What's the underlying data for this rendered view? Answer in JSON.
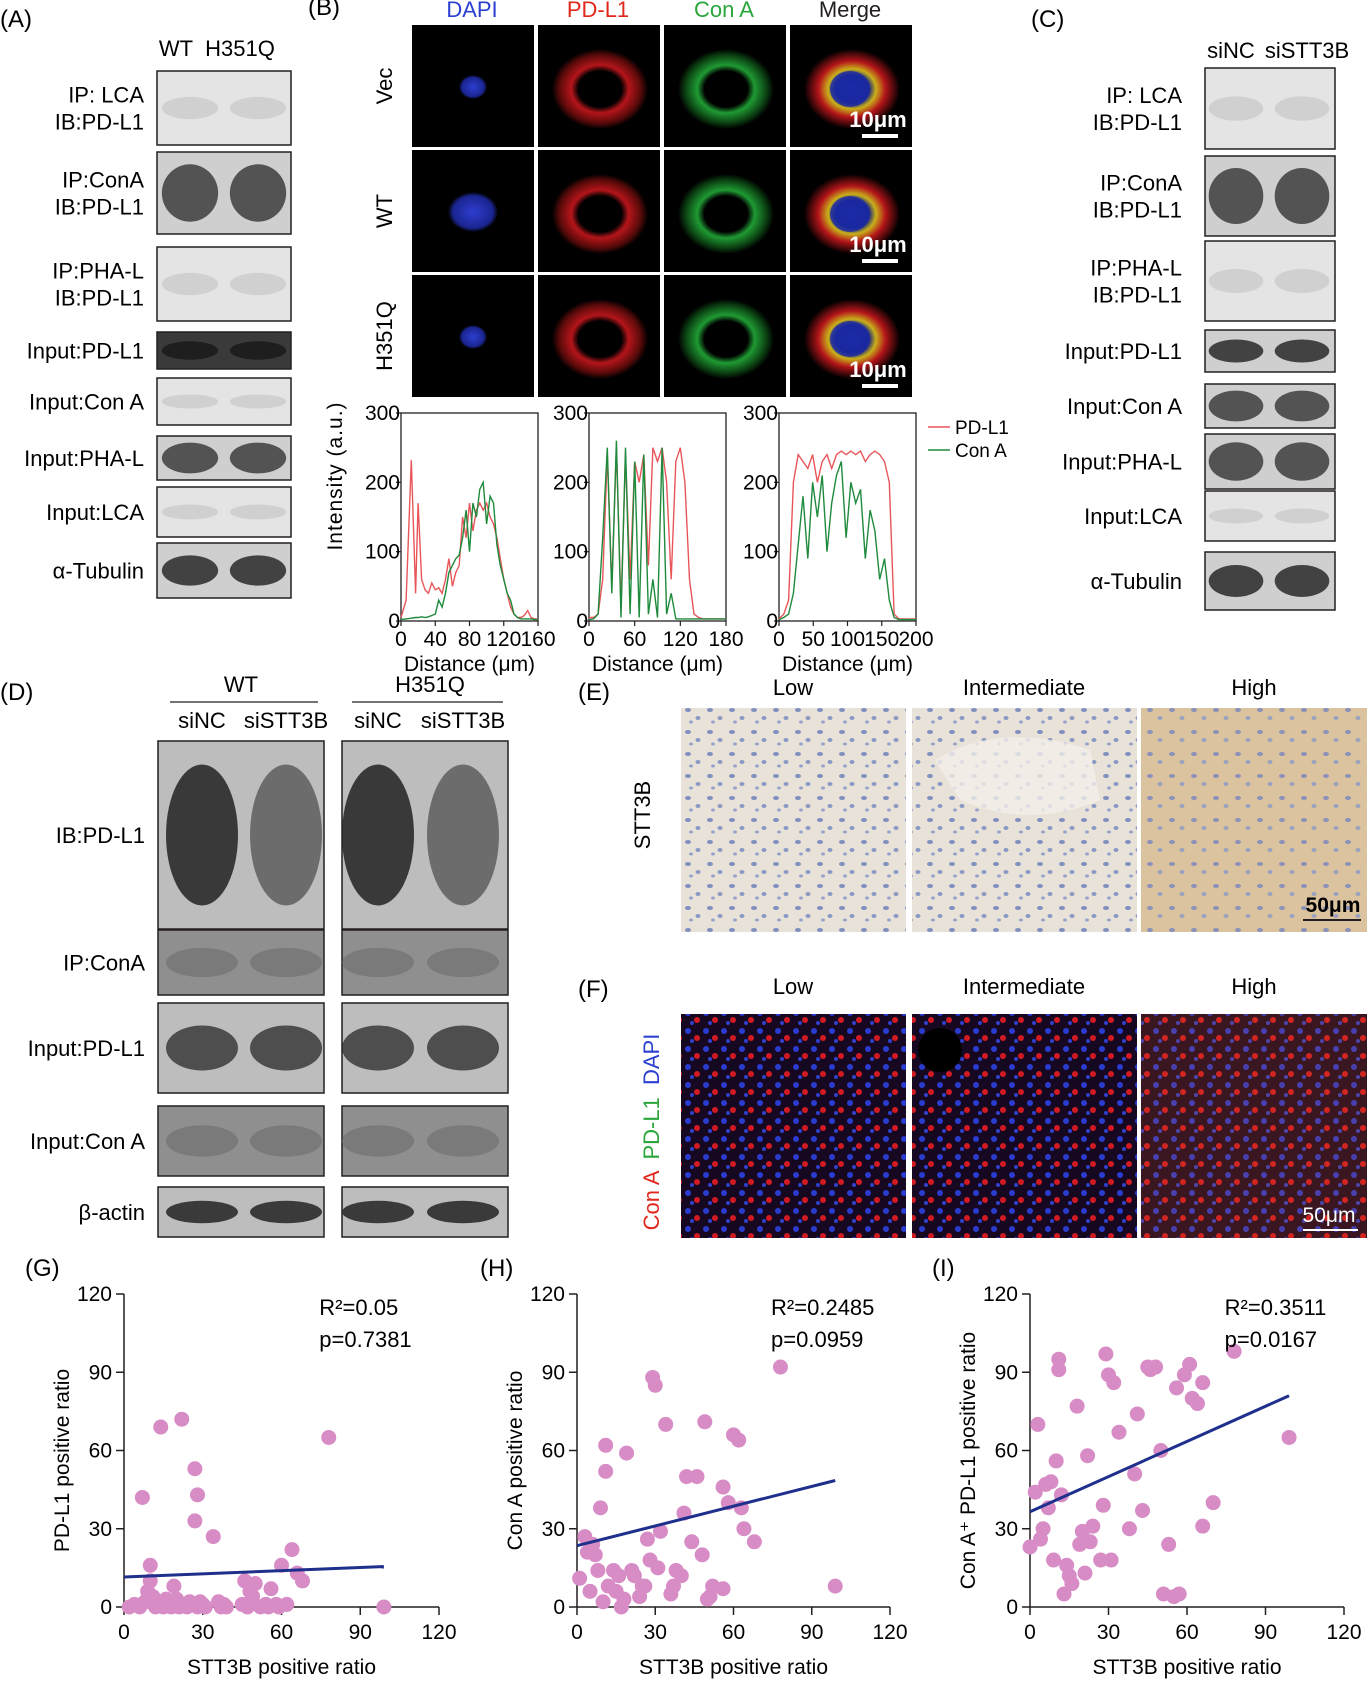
{
  "panels": {
    "A": {
      "letter": "(A)",
      "columns": [
        "WT",
        "H351Q"
      ],
      "rows": [
        "IP: LCA\nIB:PD-L1",
        "IP:ConA\nIB:PD-L1",
        "IP:PHA-L\nIB:PD-L1",
        "Input:PD-L1",
        "Input:Con A",
        "Input:PHA-L",
        "Input:LCA",
        "α-Tubulin"
      ]
    },
    "B": {
      "letter": "(B)",
      "channels": [
        "DAPI",
        "PD-L1",
        "Con A",
        "Merge"
      ],
      "channel_colors": [
        "#2b3fd1",
        "#e1261c",
        "#2aa63b",
        "#231f20"
      ],
      "rows": [
        "Vec",
        "WT",
        "H351Q"
      ],
      "scale_bar": "10μm",
      "ylabel": "Intensity (a.u.)",
      "xlabel": "Distance (μm)",
      "legend": [
        "PD-L1",
        "Con A"
      ]
    },
    "C": {
      "letter": "(C)",
      "columns": [
        "siNC",
        "siSTT3B"
      ],
      "rows": [
        "IP: LCA\nIB:PD-L1",
        "IP:ConA\nIB:PD-L1",
        "IP:PHA-L\nIB:PD-L1",
        "Input:PD-L1",
        "Input:Con A",
        "Input:PHA-L",
        "Input:LCA",
        "α-Tubulin"
      ]
    },
    "D": {
      "letter": "(D)",
      "groups": [
        "WT",
        "H351Q"
      ],
      "columns": [
        "siNC",
        "siSTT3B",
        "siNC",
        "siSTT3B"
      ],
      "rows": [
        "IB:PD-L1",
        "IP:ConA",
        "Input:PD-L1",
        "Input:Con A",
        "β-actin"
      ]
    },
    "E": {
      "letter": "(E)",
      "columns": [
        "Low",
        "Intermediate",
        "High"
      ],
      "row_label": "STT3B",
      "scale_bar": "50μm"
    },
    "F": {
      "letter": "(F)",
      "columns": [
        "Low",
        "Intermediate",
        "High"
      ],
      "row_label_parts": [
        "Con A",
        "PD-L1",
        "DAPI"
      ],
      "row_label_colors": [
        "#e1261c",
        "#2aa63b",
        "#2b3fd1"
      ],
      "scale_bar": "50μm"
    },
    "G": {
      "letter": "(G)",
      "r2": "R²=0.05",
      "p": "p=0.7381"
    },
    "H": {
      "letter": "(H)",
      "r2": "R²=0.2485",
      "p": "p=0.0959"
    },
    "I": {
      "letter": "(I)",
      "r2": "R²=0.3511",
      "p": "p=0.0167"
    }
  },
  "chart_data": [
    {
      "type": "line",
      "panel": "B-Vec",
      "xlabel": "Distance (μm)",
      "ylabel": "Intensity (a.u.)",
      "xticks": [
        0,
        40,
        80,
        120,
        160
      ],
      "yticks": [
        0,
        100,
        200,
        300
      ],
      "xlim": [
        0,
        160
      ],
      "ylim": [
        0,
        300
      ],
      "x": [
        0,
        6,
        12,
        17,
        20,
        24,
        28,
        32,
        36,
        40,
        44,
        48,
        52,
        56,
        60,
        64,
        68,
        72,
        76,
        80,
        84,
        88,
        92,
        96,
        100,
        104,
        108,
        112,
        116,
        120,
        124,
        128,
        132,
        136,
        140,
        144,
        148,
        152,
        156,
        160
      ],
      "series": [
        {
          "name": "PD-L1",
          "color": "#e8565a",
          "values": [
            5,
            30,
            232,
            40,
            170,
            60,
            45,
            40,
            55,
            45,
            48,
            40,
            60,
            90,
            50,
            70,
            80,
            150,
            120,
            170,
            130,
            160,
            170,
            160,
            170,
            150,
            140,
            120,
            90,
            60,
            40,
            20,
            10,
            5,
            5,
            8,
            15,
            5,
            3,
            3
          ]
        },
        {
          "name": "Con A",
          "color": "#1e8a3c",
          "values": [
            2,
            3,
            4,
            5,
            5,
            6,
            5,
            6,
            8,
            10,
            30,
            20,
            40,
            70,
            80,
            90,
            95,
            120,
            160,
            100,
            170,
            150,
            190,
            200,
            140,
            180,
            170,
            110,
            80,
            60,
            40,
            30,
            10,
            5,
            3,
            3,
            3,
            3,
            2,
            2
          ]
        }
      ]
    },
    {
      "type": "line",
      "panel": "B-WT",
      "xlabel": "Distance (μm)",
      "ylabel": "Intensity (a.u.)",
      "xticks": [
        0,
        60,
        120,
        180
      ],
      "yticks": [
        0,
        100,
        200,
        300
      ],
      "xlim": [
        0,
        180
      ],
      "ylim": [
        0,
        300
      ],
      "x": [
        0,
        6,
        12,
        18,
        24,
        30,
        36,
        42,
        48,
        54,
        60,
        66,
        72,
        78,
        84,
        90,
        96,
        102,
        108,
        114,
        120,
        126,
        132,
        138,
        144,
        150,
        156,
        162,
        168,
        174,
        180
      ],
      "series": [
        {
          "name": "PD-L1",
          "color": "#e8565a",
          "values": [
            5,
            5,
            10,
            60,
            240,
            50,
            250,
            20,
            240,
            60,
            230,
            200,
            240,
            80,
            250,
            230,
            250,
            200,
            60,
            230,
            250,
            200,
            60,
            10,
            5,
            3,
            3,
            3,
            3,
            3,
            3
          ]
        },
        {
          "name": "Con A",
          "color": "#1e8a3c",
          "values": [
            2,
            3,
            10,
            120,
            250,
            40,
            260,
            5,
            250,
            10,
            230,
            5,
            240,
            10,
            60,
            5,
            250,
            10,
            40,
            3,
            3,
            3,
            3,
            3,
            3,
            3,
            3,
            3,
            3,
            3,
            3
          ]
        }
      ]
    },
    {
      "type": "line",
      "panel": "B-H351Q",
      "xlabel": "Distance (μm)",
      "ylabel": "Intensity (a.u.)",
      "xticks": [
        0,
        50,
        100,
        150,
        200
      ],
      "yticks": [
        0,
        100,
        200,
        300
      ],
      "xlim": [
        0,
        200
      ],
      "ylim": [
        0,
        300
      ],
      "x": [
        0,
        7,
        14,
        21,
        28,
        35,
        42,
        49,
        56,
        63,
        70,
        77,
        84,
        91,
        98,
        105,
        112,
        119,
        126,
        133,
        140,
        147,
        154,
        161,
        168,
        175,
        182,
        189,
        196,
        200
      ],
      "series": [
        {
          "name": "PD-L1",
          "color": "#e8565a",
          "values": [
            3,
            10,
            30,
            200,
            240,
            230,
            220,
            240,
            200,
            230,
            240,
            220,
            240,
            245,
            240,
            245,
            240,
            245,
            230,
            240,
            245,
            240,
            230,
            200,
            10,
            3,
            3,
            3,
            3,
            3
          ]
        },
        {
          "name": "Con A",
          "color": "#1e8a3c",
          "values": [
            2,
            5,
            10,
            40,
            110,
            180,
            90,
            200,
            150,
            210,
            100,
            170,
            210,
            230,
            120,
            200,
            170,
            190,
            90,
            160,
            130,
            60,
            90,
            30,
            5,
            2,
            2,
            2,
            2,
            2
          ]
        }
      ]
    },
    {
      "type": "scatter",
      "panel": "G",
      "xlabel": "STT3B positive ratio",
      "ylabel": "PD-L1 positive ratio",
      "xlim": [
        0,
        120
      ],
      "ylim": [
        0,
        120
      ],
      "xticks": [
        0,
        30,
        60,
        90,
        120
      ],
      "yticks": [
        0,
        30,
        60,
        90,
        120
      ],
      "points": [
        [
          2,
          0
        ],
        [
          4,
          1
        ],
        [
          6,
          0
        ],
        [
          7,
          42
        ],
        [
          8,
          2
        ],
        [
          9,
          6
        ],
        [
          10,
          10
        ],
        [
          10,
          16
        ],
        [
          11,
          4
        ],
        [
          12,
          0
        ],
        [
          13,
          1
        ],
        [
          14,
          69
        ],
        [
          15,
          0
        ],
        [
          16,
          3
        ],
        [
          18,
          0
        ],
        [
          19,
          8
        ],
        [
          20,
          3
        ],
        [
          21,
          0
        ],
        [
          22,
          72
        ],
        [
          23,
          1
        ],
        [
          24,
          0
        ],
        [
          25,
          2
        ],
        [
          27,
          53
        ],
        [
          27,
          33
        ],
        [
          28,
          43
        ],
        [
          28,
          0
        ],
        [
          29,
          2
        ],
        [
          30,
          1
        ],
        [
          31,
          0
        ],
        [
          34,
          27
        ],
        [
          36,
          2
        ],
        [
          37,
          0
        ],
        [
          38,
          1
        ],
        [
          39,
          0
        ],
        [
          45,
          1
        ],
        [
          46,
          10
        ],
        [
          47,
          0
        ],
        [
          48,
          6
        ],
        [
          49,
          4
        ],
        [
          50,
          9
        ],
        [
          52,
          0
        ],
        [
          54,
          1
        ],
        [
          55,
          0
        ],
        [
          56,
          7
        ],
        [
          58,
          1
        ],
        [
          59,
          0
        ],
        [
          60,
          16
        ],
        [
          62,
          1
        ],
        [
          64,
          22
        ],
        [
          66,
          13
        ],
        [
          68,
          10
        ],
        [
          78,
          65
        ],
        [
          99,
          0
        ]
      ],
      "fit_line": [
        [
          0,
          11.5
        ],
        [
          99,
          15.5
        ]
      ],
      "r2": "R²=0.05",
      "p": "p=0.7381"
    },
    {
      "type": "scatter",
      "panel": "H",
      "xlabel": "STT3B positive ratio",
      "ylabel": "Con A positive ratio",
      "xlim": [
        0,
        120
      ],
      "ylim": [
        0,
        120
      ],
      "xticks": [
        0,
        30,
        60,
        90,
        120
      ],
      "yticks": [
        0,
        30,
        60,
        90,
        120
      ],
      "points": [
        [
          1,
          11
        ],
        [
          3,
          27
        ],
        [
          4,
          21
        ],
        [
          5,
          6
        ],
        [
          6,
          24
        ],
        [
          7,
          20
        ],
        [
          8,
          14
        ],
        [
          9,
          38
        ],
        [
          10,
          2
        ],
        [
          11,
          62
        ],
        [
          11,
          52
        ],
        [
          12,
          8
        ],
        [
          14,
          14
        ],
        [
          15,
          6
        ],
        [
          16,
          12
        ],
        [
          17,
          0
        ],
        [
          18,
          3
        ],
        [
          19,
          59
        ],
        [
          21,
          14
        ],
        [
          22,
          12
        ],
        [
          24,
          4
        ],
        [
          25,
          8
        ],
        [
          26,
          8
        ],
        [
          27,
          26
        ],
        [
          28,
          18
        ],
        [
          29,
          88
        ],
        [
          30,
          85
        ],
        [
          31,
          15
        ],
        [
          32,
          29
        ],
        [
          34,
          70
        ],
        [
          36,
          5
        ],
        [
          37,
          8
        ],
        [
          38,
          14
        ],
        [
          40,
          12
        ],
        [
          41,
          36
        ],
        [
          42,
          50
        ],
        [
          44,
          25
        ],
        [
          46,
          50
        ],
        [
          48,
          20
        ],
        [
          49,
          71
        ],
        [
          50,
          3
        ],
        [
          51,
          4
        ],
        [
          52,
          8
        ],
        [
          56,
          46
        ],
        [
          58,
          40
        ],
        [
          60,
          66
        ],
        [
          62,
          64
        ],
        [
          63,
          38
        ],
        [
          64,
          30
        ],
        [
          68,
          25
        ],
        [
          78,
          92
        ],
        [
          99,
          8
        ],
        [
          56,
          7
        ]
      ],
      "fit_line": [
        [
          0,
          23.5
        ],
        [
          99,
          48.5
        ]
      ],
      "r2": "R²=0.2485",
      "p": "p=0.0959"
    },
    {
      "type": "scatter",
      "panel": "I",
      "xlabel": "STT3B positive ratio",
      "ylabel": "Con A⁺ PD-L1 positive ratio",
      "xlim": [
        0,
        120
      ],
      "ylim": [
        0,
        120
      ],
      "xticks": [
        0,
        30,
        60,
        90,
        120
      ],
      "yticks": [
        0,
        30,
        60,
        90,
        120
      ],
      "points": [
        [
          0,
          23
        ],
        [
          2,
          44
        ],
        [
          3,
          70
        ],
        [
          4,
          26
        ],
        [
          5,
          30
        ],
        [
          6,
          47
        ],
        [
          7,
          38
        ],
        [
          8,
          48
        ],
        [
          9,
          18
        ],
        [
          10,
          56
        ],
        [
          11,
          95
        ],
        [
          11,
          91
        ],
        [
          12,
          43
        ],
        [
          13,
          5
        ],
        [
          14,
          16
        ],
        [
          15,
          12
        ],
        [
          16,
          9
        ],
        [
          18,
          77
        ],
        [
          19,
          24
        ],
        [
          20,
          29
        ],
        [
          21,
          13
        ],
        [
          22,
          58
        ],
        [
          23,
          25
        ],
        [
          24,
          31
        ],
        [
          27,
          18
        ],
        [
          28,
          39
        ],
        [
          29,
          97
        ],
        [
          30,
          89
        ],
        [
          31,
          18
        ],
        [
          32,
          86
        ],
        [
          34,
          67
        ],
        [
          38,
          30
        ],
        [
          40,
          51
        ],
        [
          41,
          74
        ],
        [
          43,
          37
        ],
        [
          45,
          92
        ],
        [
          46,
          91
        ],
        [
          48,
          92
        ],
        [
          50,
          60
        ],
        [
          51,
          5
        ],
        [
          53,
          24
        ],
        [
          55,
          4
        ],
        [
          56,
          84
        ],
        [
          57,
          5
        ],
        [
          59,
          89
        ],
        [
          61,
          93
        ],
        [
          62,
          80
        ],
        [
          64,
          78
        ],
        [
          66,
          86
        ],
        [
          66,
          31
        ],
        [
          70,
          40
        ],
        [
          78,
          98
        ],
        [
          99,
          65
        ]
      ],
      "fit_line": [
        [
          0,
          36.5
        ],
        [
          99,
          81
        ]
      ],
      "r2": "R²=0.3511",
      "p": "p=0.0167"
    }
  ]
}
